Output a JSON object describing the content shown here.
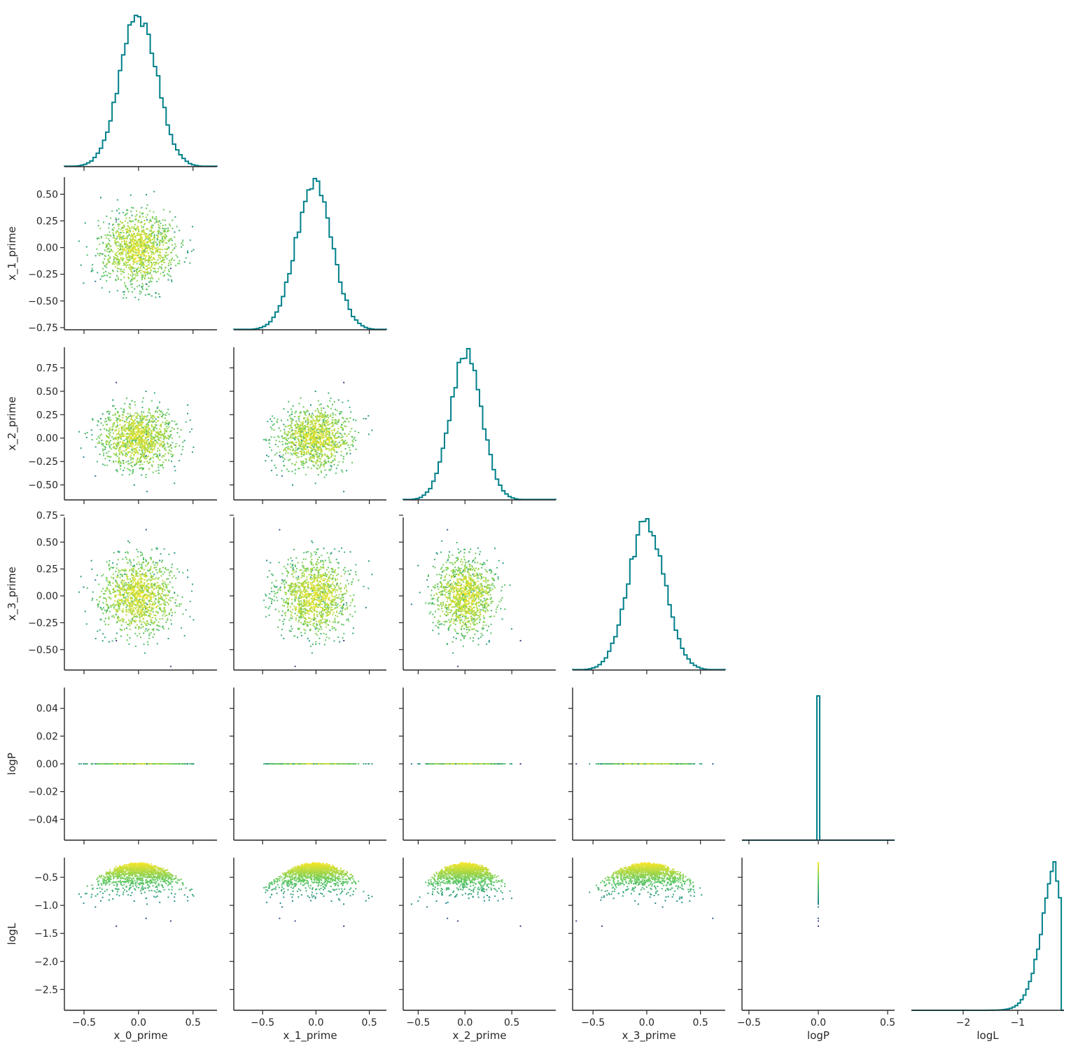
{
  "chart_data": {
    "type": "corner",
    "variables": [
      "x_0_prime",
      "x_1_prime",
      "x_2_prime",
      "x_3_prime",
      "logP",
      "logL"
    ],
    "axis_labels": {
      "x": [
        "x_0_prime",
        "x_1_prime",
        "x_2_prime",
        "x_3_prime",
        "logP",
        "logL"
      ],
      "y": [
        "",
        "x_1_prime",
        "x_2_prime",
        "x_3_prime",
        "logP",
        "logL"
      ]
    },
    "xlim": [
      [
        -0.68,
        0.72
      ],
      [
        -0.77,
        0.66
      ],
      [
        -0.66,
        0.97
      ],
      [
        -0.69,
        0.73
      ],
      [
        -0.55,
        0.55
      ],
      [
        -2.95,
        -0.15
      ]
    ],
    "ylim": [
      [
        0,
        1
      ],
      [
        -0.77,
        0.66
      ],
      [
        -0.66,
        0.97
      ],
      [
        -0.69,
        0.73
      ],
      [
        -0.055,
        0.055
      ],
      [
        -2.87,
        -0.15
      ]
    ],
    "xticks": [
      {
        "values": [
          -0.5,
          0.0,
          0.5
        ],
        "labels": [
          "−0.5",
          "0.0",
          "0.5"
        ]
      },
      {
        "values": [
          -0.5,
          0.0,
          0.5
        ],
        "labels": [
          "−0.5",
          "0.0",
          "0.5"
        ]
      },
      {
        "values": [
          -0.5,
          0.0,
          0.5
        ],
        "labels": [
          "−0.5",
          "0.0",
          "0.5"
        ]
      },
      {
        "values": [
          -0.5,
          0.0,
          0.5
        ],
        "labels": [
          "−0.5",
          "0.0",
          "0.5"
        ]
      },
      {
        "values": [
          -0.5,
          0.0,
          0.5
        ],
        "labels": [
          "−0.5",
          "0.0",
          "0.5"
        ]
      },
      {
        "values": [
          -2,
          -1
        ],
        "labels": [
          "−2",
          "−1"
        ]
      }
    ],
    "yticks": [
      {
        "values": [],
        "labels": []
      },
      {
        "values": [
          0.5,
          0.25,
          0.0,
          -0.25,
          -0.5,
          -0.75
        ],
        "labels": [
          "0.50",
          "0.25",
          "0.00",
          "−0.25",
          "−0.50",
          "−0.75"
        ]
      },
      {
        "values": [
          0.75,
          0.5,
          0.25,
          0.0,
          -0.25,
          -0.5
        ],
        "labels": [
          "0.75",
          "0.50",
          "0.25",
          "0.00",
          "−0.25",
          "−0.50"
        ]
      },
      {
        "values": [
          0.75,
          0.5,
          0.25,
          0.0,
          -0.25,
          -0.5
        ],
        "labels": [
          "0.75",
          "0.50",
          "0.25",
          "0.00",
          "−0.25",
          "−0.50"
        ]
      },
      {
        "values": [
          0.04,
          0.02,
          0.0,
          -0.02,
          -0.04
        ],
        "labels": [
          "0.04",
          "0.02",
          "0.00",
          "−0.02",
          "−0.04"
        ]
      },
      {
        "values": [
          -0.5,
          -1.0,
          -1.5,
          -2.0,
          -2.5
        ],
        "labels": [
          "−0.5",
          "−1.0",
          "−1.5",
          "−2.0",
          "−2.5"
        ]
      }
    ],
    "marginals": [
      {
        "variable": "x_0_prime",
        "shape": "gaussian",
        "mean": 0.0,
        "std": 0.17
      },
      {
        "variable": "x_1_prime",
        "shape": "gaussian",
        "mean": -0.02,
        "std": 0.17
      },
      {
        "variable": "x_2_prime",
        "shape": "gaussian",
        "mean": 0.01,
        "std": 0.17
      },
      {
        "variable": "x_3_prime",
        "shape": "gaussian",
        "mean": 0.0,
        "std": 0.17
      },
      {
        "variable": "logP",
        "shape": "spike",
        "value": 0.0
      },
      {
        "variable": "logL",
        "shape": "left-skewed",
        "mode": -0.33,
        "min": -2.72,
        "max": -0.22
      }
    ],
    "scatter": {
      "n_points_per_panel": 1200,
      "color_variable": "logL",
      "colormap": "viridis",
      "marker_size_px": 2,
      "relationship": "logL ≈ −0.23 − 1.75·(x_0² + x_1² + x_2² + x_3²)"
    },
    "colors": {
      "hist": "#00808a",
      "axis": "#262626"
    },
    "grid": false,
    "legend": "none"
  }
}
